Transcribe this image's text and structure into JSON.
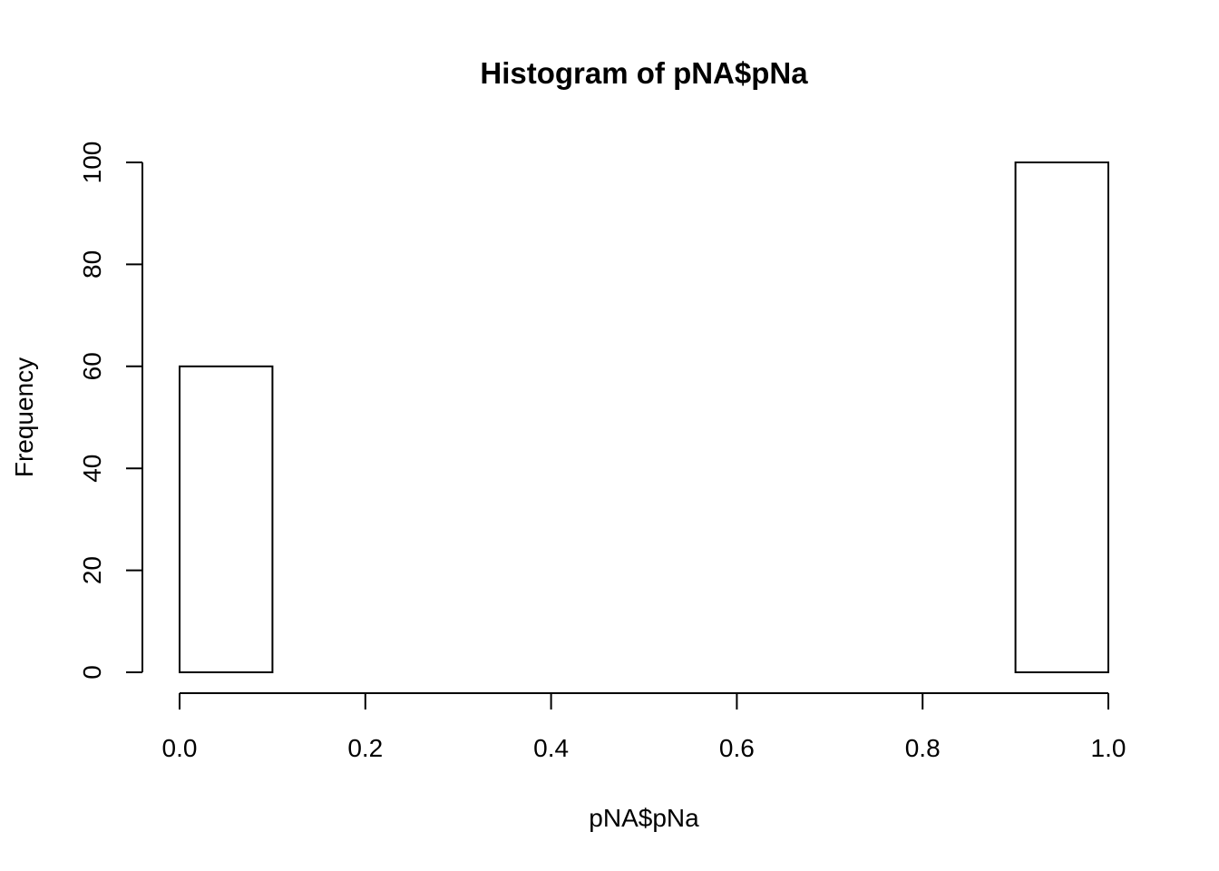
{
  "chart_data": {
    "type": "histogram",
    "title": "Histogram of pNA$pNa",
    "xlabel": "pNA$pNa",
    "ylabel": "Frequency",
    "bins": [
      {
        "start": 0.0,
        "end": 0.1,
        "count": 60
      },
      {
        "start": 0.1,
        "end": 0.2,
        "count": 0
      },
      {
        "start": 0.2,
        "end": 0.3,
        "count": 0
      },
      {
        "start": 0.3,
        "end": 0.4,
        "count": 0
      },
      {
        "start": 0.4,
        "end": 0.5,
        "count": 0
      },
      {
        "start": 0.5,
        "end": 0.6,
        "count": 0
      },
      {
        "start": 0.6,
        "end": 0.7,
        "count": 0
      },
      {
        "start": 0.7,
        "end": 0.8,
        "count": 0
      },
      {
        "start": 0.8,
        "end": 0.9,
        "count": 0
      },
      {
        "start": 0.9,
        "end": 1.0,
        "count": 100
      }
    ],
    "xlim": [
      0.0,
      1.0
    ],
    "ylim": [
      0,
      100
    ],
    "x_ticks": [
      0.0,
      0.2,
      0.4,
      0.6,
      0.8,
      1.0
    ],
    "x_tick_labels": [
      "0.0",
      "0.2",
      "0.4",
      "0.6",
      "0.8",
      "1.0"
    ],
    "y_ticks": [
      0,
      20,
      40,
      60,
      80,
      100
    ],
    "y_tick_labels": [
      "0",
      "20",
      "40",
      "60",
      "80",
      "100"
    ],
    "grid": false,
    "legend": "none"
  }
}
